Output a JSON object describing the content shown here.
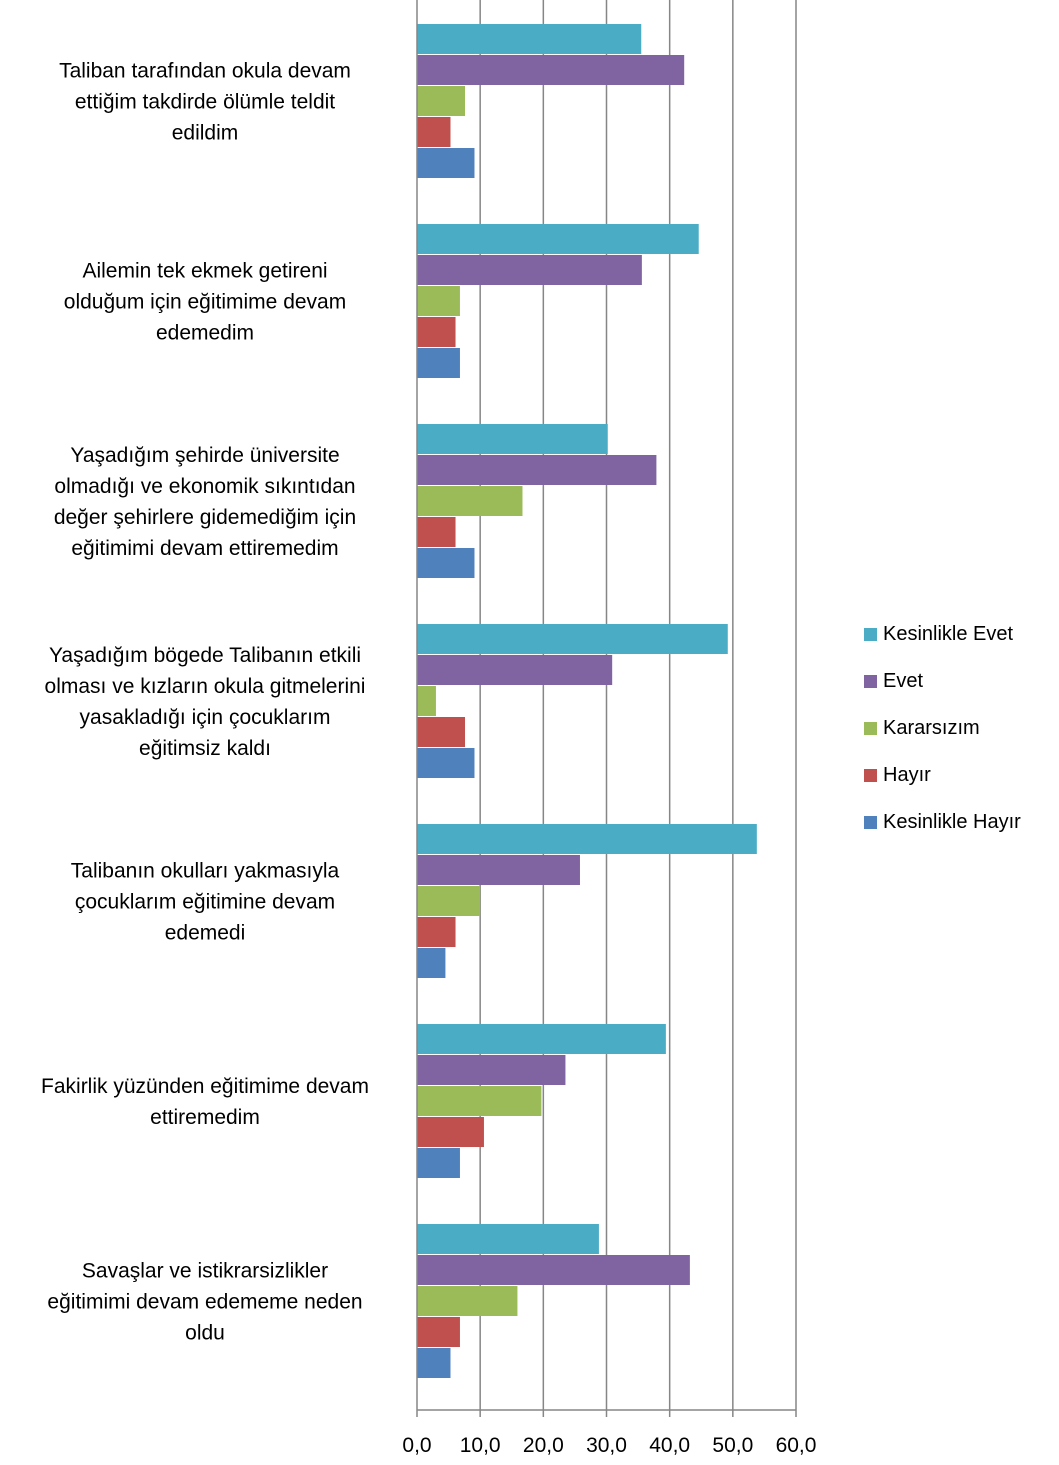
{
  "chart_data": {
    "type": "bar",
    "orientation": "horizontal",
    "categories": [
      [
        "Taliban tarafından okula devam",
        "ettiğim takdirde ölümle teldit",
        "edildim"
      ],
      [
        "Ailemin tek ekmek getireni",
        "olduğum için eğitimime devam",
        "edemedim"
      ],
      [
        "Yaşadığım şehirde üniversite",
        "olmadığı ve ekonomik sıkıntıdan",
        "değer şehirlere gidemediğim için",
        "eğitimimi devam ettiremedim"
      ],
      [
        "Yaşadığım bögede Talibanın etkili",
        "olması ve kızların okula gitmelerini",
        "yasakladığı için çocuklarım",
        "eğitimsiz kaldı"
      ],
      [
        "Talibanın okulları yakmasıyla",
        "çocuklarım eğitimine devam",
        "edemedi"
      ],
      [
        "Fakirlik yüzünden eğitimime devam",
        "ettiremedim"
      ],
      [
        "Savaşlar ve istikrarsizlikler",
        "eğitimimi devam edememe neden",
        "oldu"
      ]
    ],
    "series": [
      {
        "name": "Kesinlikle Evet",
        "color": "#4BACC6",
        "values": [
          35.5,
          44.6,
          30.2,
          49.2,
          53.8,
          39.4,
          28.8
        ]
      },
      {
        "name": "Evet",
        "color": "#8064A2",
        "values": [
          42.3,
          35.6,
          37.9,
          30.9,
          25.8,
          23.5,
          43.2
        ]
      },
      {
        "name": "Kararsızım",
        "color": "#9BBB59",
        "values": [
          7.6,
          6.8,
          16.7,
          3.0,
          10.0,
          19.7,
          15.9
        ]
      },
      {
        "name": "Hayır",
        "color": "#C0504D",
        "values": [
          5.3,
          6.1,
          6.1,
          7.6,
          6.1,
          10.6,
          6.8
        ]
      },
      {
        "name": "Kesinlikle Hayır",
        "color": "#4F81BD",
        "values": [
          9.1,
          6.8,
          9.1,
          9.1,
          4.5,
          6.8,
          5.3
        ]
      }
    ],
    "xticks": [
      "0,0",
      "10,0",
      "20,0",
      "30,0",
      "40,0",
      "50,0",
      "60,0"
    ],
    "xlim": [
      0,
      60
    ],
    "title": "",
    "xlabel": "",
    "ylabel": "",
    "grid": "vertical",
    "legend_position": "right"
  }
}
